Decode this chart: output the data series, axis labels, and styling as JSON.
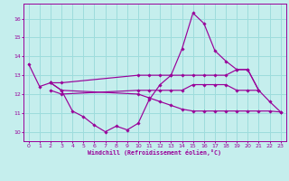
{
  "xlabel": "Windchill (Refroidissement éolien,°C)",
  "xlim": [
    -0.5,
    23.5
  ],
  "ylim": [
    9.5,
    16.8
  ],
  "yticks": [
    10,
    11,
    12,
    13,
    14,
    15,
    16
  ],
  "xticks": [
    0,
    1,
    2,
    3,
    4,
    5,
    6,
    7,
    8,
    9,
    10,
    11,
    12,
    13,
    14,
    15,
    16,
    17,
    18,
    19,
    20,
    21,
    22,
    23
  ],
  "bg_color": "#c5eeed",
  "grid_color": "#9ddcdc",
  "line_color": "#990099",
  "line1": [
    13.6,
    12.4,
    12.6,
    12.2,
    11.1,
    10.8,
    10.35,
    10.0,
    10.3,
    10.1,
    10.45,
    11.7,
    12.5,
    13.0,
    14.4,
    16.3,
    15.75,
    14.3,
    13.75,
    13.3,
    13.3,
    12.2,
    11.6,
    11.05
  ],
  "line2_x": [
    2,
    3,
    10,
    11,
    12,
    13,
    14,
    15,
    16,
    17,
    18,
    19,
    20,
    21
  ],
  "line2_y": [
    12.6,
    12.6,
    13.0,
    13.0,
    13.0,
    13.0,
    13.0,
    13.0,
    13.0,
    13.0,
    13.0,
    13.3,
    13.3,
    12.2
  ],
  "line3_x": [
    2,
    3,
    10,
    11,
    12,
    13,
    14,
    15,
    16,
    17,
    18,
    19,
    20,
    21
  ],
  "line3_y": [
    12.2,
    12.0,
    12.2,
    12.2,
    12.2,
    12.2,
    12.2,
    12.5,
    12.5,
    12.5,
    12.5,
    12.2,
    12.2,
    12.2
  ],
  "line4_x": [
    2,
    3,
    10,
    11,
    12,
    13,
    14,
    15,
    16,
    17,
    18,
    19,
    20,
    21,
    22,
    23
  ],
  "line4_y": [
    12.6,
    12.2,
    12.0,
    11.8,
    11.6,
    11.4,
    11.2,
    11.1,
    11.1,
    11.1,
    11.1,
    11.1,
    11.1,
    11.1,
    11.1,
    11.05
  ]
}
